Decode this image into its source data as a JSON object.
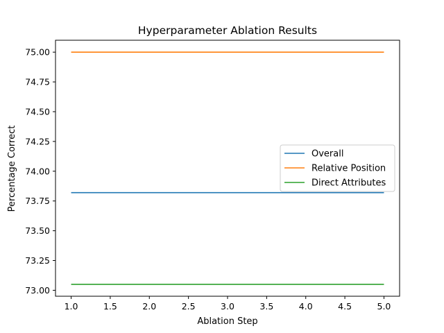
{
  "chart_data": {
    "type": "line",
    "title": "Hyperparameter Ablation Results",
    "xlabel": "Ablation Step",
    "ylabel": "Percentage Correct",
    "xlim": [
      0.8,
      5.2
    ],
    "ylim": [
      72.95,
      75.1
    ],
    "xticks": [
      "1.0",
      "1.5",
      "2.0",
      "2.5",
      "3.0",
      "3.5",
      "4.0",
      "4.5",
      "5.0"
    ],
    "yticks": [
      "73.00",
      "73.25",
      "73.50",
      "73.75",
      "74.00",
      "74.25",
      "74.50",
      "74.75",
      "75.00"
    ],
    "grid": false,
    "legend_position": "center-right",
    "x": [
      1,
      2,
      3,
      4,
      5
    ],
    "series": [
      {
        "name": "Overall",
        "color": "#1f77b4",
        "values": [
          73.82,
          73.82,
          73.82,
          73.82,
          73.82
        ]
      },
      {
        "name": "Relative Position",
        "color": "#ff7f0e",
        "values": [
          75.0,
          75.0,
          75.0,
          75.0,
          75.0
        ]
      },
      {
        "name": "Direct Attributes",
        "color": "#2ca02c",
        "values": [
          73.05,
          73.05,
          73.05,
          73.05,
          73.05
        ]
      }
    ]
  }
}
